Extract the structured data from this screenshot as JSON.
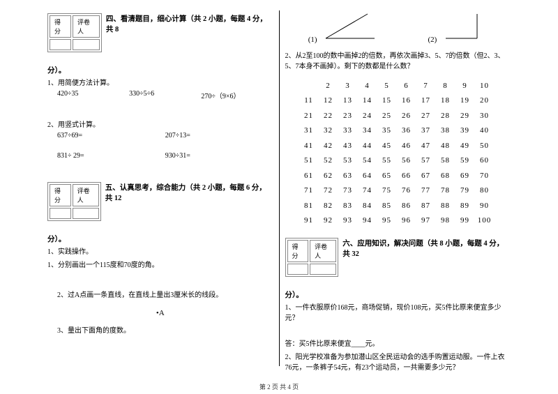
{
  "scorebox": {
    "c1": "得分",
    "c2": "评卷人"
  },
  "section4": {
    "title": "四、看清题目，细心计算（共 2 小题，每题 4 分，共 8",
    "tail": "分）。",
    "q1": "1、用简便方法计算。",
    "q1a": "420÷35",
    "q1b": "330÷5÷6",
    "q1c": "270÷（9×6）",
    "q2": "2、用竖式计算。",
    "q2a": "637÷69=",
    "q2b": "207÷13=",
    "q2c": "831÷ 29=",
    "q2d": "930÷31="
  },
  "section5": {
    "title": "五、认真思考，综合能力（共 2 小题，每题 6 分，共 12",
    "tail": "分）。",
    "q1": "1、实践操作。",
    "q1a": "1、分别画出一个115度和70度的角。",
    "q1b": "2、过A点画一条直线，在直线上量出3厘米长的线段。",
    "pointA": "•A",
    "q1c": "3、量出下面角的度数。",
    "a1": "(1)",
    "a2": "(2)",
    "q2": "2、从2至100的数中画掉2的倍数，再依次画掉3、5、7的倍数（但2、3、5、7本身不画掉）。剩下的数都是什么数？"
  },
  "grid": {
    "rows": [
      [
        "",
        "2",
        "3",
        "4",
        "5",
        "6",
        "7",
        "8",
        "9",
        "10"
      ],
      [
        "11",
        "12",
        "13",
        "14",
        "15",
        "16",
        "17",
        "18",
        "19",
        "20"
      ],
      [
        "21",
        "22",
        "23",
        "24",
        "25",
        "26",
        "27",
        "28",
        "29",
        "30"
      ],
      [
        "31",
        "32",
        "33",
        "34",
        "35",
        "36",
        "37",
        "38",
        "39",
        "40"
      ],
      [
        "41",
        "42",
        "43",
        "44",
        "45",
        "46",
        "47",
        "48",
        "49",
        "50"
      ],
      [
        "51",
        "52",
        "53",
        "54",
        "55",
        "56",
        "57",
        "58",
        "59",
        "60"
      ],
      [
        "61",
        "62",
        "63",
        "64",
        "65",
        "66",
        "67",
        "68",
        "69",
        "70"
      ],
      [
        "71",
        "72",
        "73",
        "74",
        "75",
        "76",
        "77",
        "78",
        "79",
        "80"
      ],
      [
        "81",
        "82",
        "83",
        "84",
        "85",
        "86",
        "87",
        "88",
        "89",
        "90"
      ],
      [
        "91",
        "92",
        "93",
        "94",
        "95",
        "96",
        "97",
        "98",
        "99",
        "100"
      ]
    ]
  },
  "section6": {
    "title": "六、应用知识，解决问题（共 8 小题，每题 4 分，共 32",
    "tail": "分）。",
    "q1": "1、一件衣服原价168元，商场促销，现价108元，买5件比原来便宜多少元？",
    "ans1": "答：买5件比原来便宜____元。",
    "q2": "2、阳光学校准备为参加潜山区全民运动会的选手购置运动服。一件上衣76元，一条裤子54元，有23个运动员，一共需要多少元？"
  },
  "footer": "第 2 页 共 4 页"
}
